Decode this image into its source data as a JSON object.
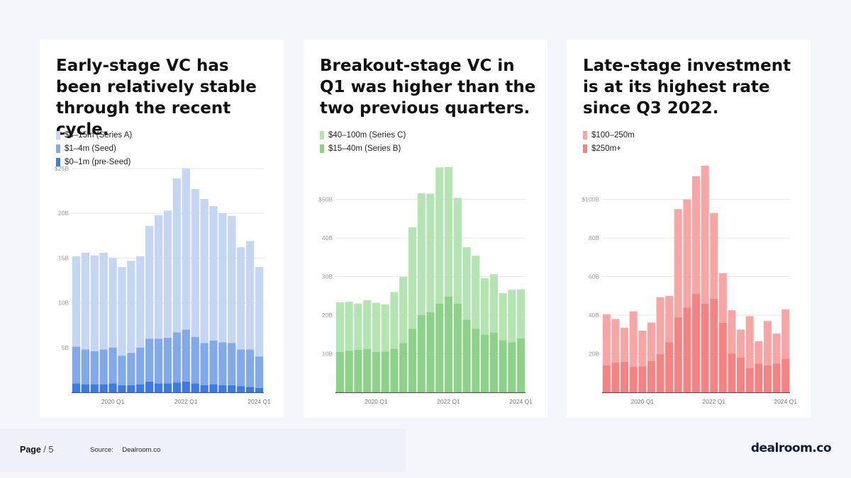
{
  "chart_data": [
    {
      "type": "bar",
      "stacked": true,
      "title": "Early-stage VC has been relatively stable through the recent cycle.",
      "categories": [
        "2019 Q1",
        "2019 Q2",
        "2019 Q3",
        "2019 Q4",
        "2020 Q1",
        "2020 Q2",
        "2020 Q3",
        "2020 Q4",
        "2021 Q1",
        "2021 Q2",
        "2021 Q3",
        "2021 Q4",
        "2022 Q1",
        "2022 Q2",
        "2022 Q3",
        "2022 Q4",
        "2023 Q1",
        "2023 Q2",
        "2023 Q3",
        "2023 Q4",
        "2024 Q1"
      ],
      "x_ticks": [
        "2020 Q1",
        "2022 Q1",
        "2024 Q1"
      ],
      "y_ticks": [
        "$25B",
        "20B",
        "15B",
        "10B",
        "5B"
      ],
      "y_tick_values": [
        25,
        20,
        15,
        10,
        5
      ],
      "ylim": [
        0,
        25
      ],
      "series": [
        {
          "name": "$0–1m (pre-Seed)",
          "color": "#3b7be6",
          "values": [
            1.0,
            0.9,
            0.9,
            0.9,
            1.0,
            0.8,
            0.8,
            0.9,
            1.2,
            1.0,
            1.0,
            1.1,
            1.2,
            1.0,
            0.8,
            0.9,
            0.8,
            0.8,
            0.7,
            0.6,
            0.5
          ]
        },
        {
          "name": "$1–4m (Seed)",
          "color": "#82a9ea",
          "values": [
            4.1,
            3.9,
            3.7,
            3.9,
            4.0,
            3.3,
            3.6,
            4.1,
            4.8,
            5.0,
            5.1,
            5.6,
            5.8,
            5.2,
            4.7,
            4.9,
            4.8,
            4.7,
            4.1,
            4.2,
            3.5
          ]
        },
        {
          "name": "$4–15m (Series A)",
          "color": "#c5d6f3",
          "values": [
            10.1,
            10.8,
            10.7,
            10.8,
            10.0,
            9.9,
            10.3,
            10.2,
            12.6,
            13.8,
            14.2,
            17.2,
            18.0,
            16.5,
            16.1,
            15.0,
            14.4,
            14.2,
            11.4,
            12.1,
            10.0
          ]
        }
      ]
    },
    {
      "type": "bar",
      "stacked": true,
      "title": "Breakout-stage VC in Q1 was higher than the two previous quarters.",
      "categories": [
        "2019 Q1",
        "2019 Q2",
        "2019 Q3",
        "2019 Q4",
        "2020 Q1",
        "2020 Q2",
        "2020 Q3",
        "2020 Q4",
        "2021 Q1",
        "2021 Q2",
        "2021 Q3",
        "2021 Q4",
        "2022 Q1",
        "2022 Q2",
        "2022 Q3",
        "2022 Q4",
        "2023 Q1",
        "2023 Q2",
        "2023 Q3",
        "2023 Q4",
        "2024 Q1"
      ],
      "x_ticks": [
        "2020 Q1",
        "2022 Q1",
        "2024 Q1"
      ],
      "y_ticks": [
        "$50B",
        "40B",
        "30B",
        "20B",
        "10B"
      ],
      "y_tick_values": [
        50,
        40,
        30,
        20,
        10
      ],
      "ylim": [
        0,
        58
      ],
      "series": [
        {
          "name": "$15–40m (Series B)",
          "color": "#8ed18b",
          "values": [
            10.5,
            10.8,
            11.0,
            11.2,
            10.5,
            10.6,
            11.3,
            12.8,
            16.5,
            20.0,
            20.8,
            23.0,
            24.8,
            23.0,
            18.8,
            16.5,
            15.0,
            15.5,
            13.5,
            13.0,
            14.0
          ]
        },
        {
          "name": "$40–100m (Series C)",
          "color": "#b4e4b1",
          "values": [
            12.8,
            12.7,
            12.0,
            12.7,
            12.7,
            12.2,
            14.7,
            17.1,
            26.3,
            31.6,
            30.7,
            35.3,
            33.6,
            27.4,
            18.8,
            18.9,
            14.6,
            15.1,
            12.2,
            13.6,
            12.7
          ]
        }
      ]
    },
    {
      "type": "bar",
      "stacked": true,
      "title": "Late-stage investment is at its highest rate since Q3 2022.",
      "categories": [
        "2019 Q1",
        "2019 Q2",
        "2019 Q3",
        "2019 Q4",
        "2020 Q1",
        "2020 Q2",
        "2020 Q3",
        "2020 Q4",
        "2021 Q1",
        "2021 Q2",
        "2021 Q3",
        "2021 Q4",
        "2022 Q1",
        "2022 Q2",
        "2022 Q3",
        "2022 Q4",
        "2023 Q1",
        "2023 Q2",
        "2023 Q3",
        "2023 Q4",
        "2024 Q1"
      ],
      "x_ticks": [
        "2020 Q1",
        "2022 Q1",
        "2024 Q1"
      ],
      "y_ticks": [
        "$100B",
        "80B",
        "60B",
        "40B",
        "20B"
      ],
      "y_tick_values": [
        100,
        80,
        60,
        40,
        20
      ],
      "ylim": [
        0,
        116
      ],
      "series": [
        {
          "name": "$250m+",
          "color": "#f58383",
          "values": [
            14.0,
            15.5,
            15.8,
            13.2,
            13.5,
            16.2,
            19.8,
            26.0,
            39.0,
            44.0,
            51.0,
            46.0,
            48.5,
            36.0,
            20.0,
            18.0,
            12.5,
            15.0,
            14.0,
            15.0,
            17.5
          ]
        },
        {
          "name": "$100–250m",
          "color": "#f8a5a5",
          "values": [
            26.5,
            22.5,
            17.7,
            28.8,
            18.5,
            20.0,
            29.5,
            24.0,
            56.0,
            56.0,
            61.0,
            71.5,
            44.5,
            25.8,
            22.5,
            14.5,
            27.0,
            11.5,
            23.0,
            15.5,
            25.5
          ]
        }
      ]
    }
  ],
  "legends": [
    [
      "$4–15m (Series A)",
      "$1–4m (Seed)",
      "$0–1m (pre-Seed)"
    ],
    [
      "$40–100m (Series C)",
      "$15–40m (Series B)"
    ],
    [
      "$100–250m",
      "$250m+"
    ]
  ],
  "legend_colors": [
    [
      "#c5d6f3",
      "#82a9ea",
      "#3b7be6"
    ],
    [
      "#b4e4b1",
      "#8ed18b"
    ],
    [
      "#f8a5a5",
      "#f58383"
    ]
  ],
  "footer": {
    "page_label": "Page",
    "page_sep": "/ 5",
    "source_label": "Source:",
    "source_value": "Dealroom.co",
    "logo": "dealroom.co"
  }
}
